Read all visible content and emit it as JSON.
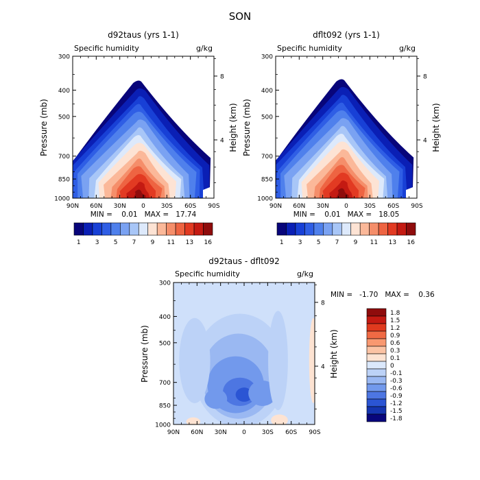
{
  "figure_title": "SON",
  "chart_data": [
    {
      "type": "heatmap",
      "title": "d92taus (yrs 1-1)",
      "variable_label": "Specific humidity",
      "units_label": "g/kg",
      "ylabel": "Pressure (mb)",
      "y2label": "Height (km)",
      "x_ticks": [
        "90N",
        "60N",
        "30N",
        "0",
        "30S",
        "60S",
        "90S"
      ],
      "x_range": [
        90,
        -90
      ],
      "y_ticks": [
        "300",
        "400",
        "500",
        "700",
        "850",
        "1000"
      ],
      "y_range_mb": [
        300,
        1000
      ],
      "height_ticks": [
        "8",
        "4"
      ],
      "stats_text": "MIN =    0.01   MAX =   17.74",
      "min": 0.01,
      "max": 17.74,
      "max_location_lat": 5,
      "colorbar_labels": [
        "1",
        "3",
        "5",
        "7",
        "9",
        "11",
        "13",
        "16"
      ]
    },
    {
      "type": "heatmap",
      "title": "dflt092 (yrs 1-1)",
      "variable_label": "Specific humidity",
      "units_label": "g/kg",
      "ylabel": "Pressure (mb)",
      "y2label": "Height (km)",
      "x_ticks": [
        "90N",
        "60N",
        "30N",
        "0",
        "30S",
        "60S",
        "90S"
      ],
      "x_range": [
        90,
        -90
      ],
      "y_ticks": [
        "300",
        "400",
        "500",
        "700",
        "850",
        "1000"
      ],
      "y_range_mb": [
        300,
        1000
      ],
      "height_ticks": [
        "8",
        "4"
      ],
      "stats_text": "MIN =    0.01   MAX =   18.05",
      "min": 0.01,
      "max": 18.05,
      "max_location_lat": 5,
      "colorbar_labels": [
        "1",
        "3",
        "5",
        "7",
        "9",
        "11",
        "13",
        "16"
      ]
    },
    {
      "type": "heatmap",
      "title": "d92taus - dflt092",
      "variable_label": "Specific humidity",
      "units_label": "g/kg",
      "ylabel": "Pressure (mb)",
      "y2label": "Height (km)",
      "x_ticks": [
        "90N",
        "60N",
        "30N",
        "0",
        "30S",
        "60S",
        "90S"
      ],
      "x_range": [
        90,
        -90
      ],
      "y_ticks": [
        "300",
        "400",
        "500",
        "700",
        "850",
        "1000"
      ],
      "y_range_mb": [
        300,
        1000
      ],
      "height_ticks": [
        "8",
        "4"
      ],
      "stats_text": "MIN =   -1.70   MAX =    0.36",
      "min": -1.7,
      "max": 0.36,
      "colorbar_labels": [
        "1.8",
        "1.5",
        "1.2",
        "0.9",
        "0.6",
        "0.3",
        "0.1",
        "0",
        "-0.1",
        "-0.3",
        "-0.6",
        "-0.9",
        "-1.2",
        "-1.5",
        "-1.8"
      ]
    }
  ],
  "colors": {
    "full_scale": [
      "#08057a",
      "#0a1fb5",
      "#1840d6",
      "#2f5ee5",
      "#4f80ec",
      "#7aa2f2",
      "#a8c6f7",
      "#dde9fb",
      "#fde3d4",
      "#fbb899",
      "#f58e6a",
      "#ee6442",
      "#e23a22",
      "#c41a12",
      "#8f0c0c"
    ],
    "diff_scale": [
      "#8f0c0c",
      "#c41a12",
      "#e03a1e",
      "#f06a44",
      "#f89870",
      "#fbc3a4",
      "#fde3d2",
      "#dbe8fb",
      "#bcd2f7",
      "#9ab8f2",
      "#7299ec",
      "#4d76e2",
      "#2b55d4",
      "#1535b0",
      "#08067c"
    ],
    "diff_background": "#cfe0fa"
  }
}
